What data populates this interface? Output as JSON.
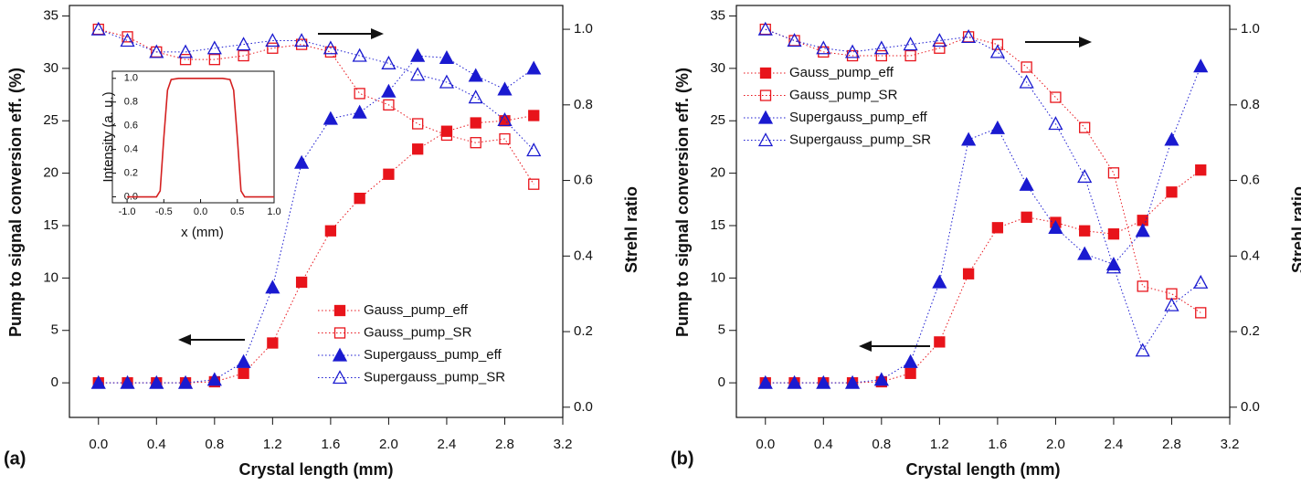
{
  "chart_data": [
    {
      "type": "scatter",
      "panel_label": "(a)",
      "xlabel": "Crystal length (mm)",
      "ylabel": "Pump to signal conversion eff. (%)",
      "y2label": "Strehl ratio",
      "x": [
        0,
        0.2,
        0.4,
        0.6,
        0.8,
        1.0,
        1.2,
        1.4,
        1.6,
        1.8,
        2.0,
        2.2,
        2.4,
        2.6,
        2.8,
        3.0
      ],
      "xlim": [
        -0.2,
        3.2
      ],
      "xticks": [
        {
          "value": 0,
          "label": "0.0"
        },
        0.4,
        0.8,
        1.2,
        1.6,
        {
          "value": 2,
          "label": "2.0"
        },
        2.4,
        2.8,
        3.2
      ],
      "ylim": [
        -3.3,
        36
      ],
      "yticks": [
        0,
        5,
        10,
        15,
        20,
        25,
        30,
        35
      ],
      "y2lim": [
        -0.027,
        1.063
      ],
      "y2ticks": [
        {
          "value": 0,
          "label": "0.0"
        },
        0.2,
        0.4,
        0.6,
        0.8,
        {
          "value": 1,
          "label": "1.0"
        }
      ],
      "legend": "lower right",
      "series": [
        {
          "name": "Gauss_pump_eff",
          "color": "#e8141b",
          "marker": "square",
          "filled": true,
          "values": [
            0,
            0,
            0,
            0,
            0.1,
            0.9,
            3.8,
            9.6,
            14.5,
            17.6,
            19.9,
            22.3,
            24.0,
            24.8,
            25.0,
            25.5
          ]
        },
        {
          "name": "Gauss_pump_SR",
          "color": "#e8141b",
          "marker": "square",
          "filled": false,
          "axis": "y2",
          "values": [
            1.0,
            0.98,
            0.94,
            0.92,
            0.92,
            0.93,
            0.95,
            0.96,
            0.94,
            0.83,
            0.8,
            0.75,
            0.72,
            0.7,
            0.71,
            0.59
          ]
        },
        {
          "name": "Supergauss_pump_eff",
          "color": "#1a1ad0",
          "marker": "triangle",
          "filled": true,
          "values": [
            0,
            0,
            0,
            0,
            0.3,
            2.0,
            9.1,
            21.0,
            25.2,
            25.8,
            27.8,
            31.2,
            31.0,
            29.3,
            28.0,
            30.0
          ]
        },
        {
          "name": "Supergauss_pump_SR",
          "color": "#1a1ad0",
          "marker": "triangle",
          "filled": false,
          "axis": "y2",
          "values": [
            1.0,
            0.97,
            0.94,
            0.94,
            0.95,
            0.96,
            0.97,
            0.97,
            0.95,
            0.93,
            0.91,
            0.88,
            0.86,
            0.82,
            0.76,
            0.68
          ]
        }
      ]
    },
    {
      "type": "line",
      "xlabel": "x (mm)",
      "ylabel": "Intensity (a. u.)",
      "x": [
        -1.0,
        -0.8,
        -0.6,
        -0.55,
        -0.5,
        -0.45,
        -0.4,
        -0.3,
        0,
        0.3,
        0.4,
        0.45,
        0.5,
        0.55,
        0.6,
        0.8,
        1.0
      ],
      "xlim": [
        -1.2,
        1.0
      ],
      "xticks": [
        {
          "value": -1,
          "label": "-1.0"
        },
        -0.5,
        {
          "value": 0,
          "label": "0.0"
        },
        0.5,
        {
          "value": 1,
          "label": "1.0"
        }
      ],
      "ylim": [
        -0.05,
        1.06
      ],
      "yticks": [
        {
          "value": 0,
          "label": "0.0"
        },
        0.2,
        0.4,
        0.6,
        0.8,
        {
          "value": 1,
          "label": "1.0"
        }
      ],
      "series": [
        {
          "color": "#d42020",
          "values": [
            0,
            0,
            0,
            0.05,
            0.5,
            0.9,
            0.99,
            1,
            1,
            1,
            0.99,
            0.9,
            0.5,
            0.05,
            0,
            0,
            0
          ]
        }
      ]
    },
    {
      "type": "scatter",
      "panel_label": "(b)",
      "xlabel": "Crystal length (mm)",
      "ylabel": "Pump to signal conversion eff. (%)",
      "y2label": "Strehl ratio",
      "x": [
        0,
        0.2,
        0.4,
        0.6,
        0.8,
        1.0,
        1.2,
        1.4,
        1.6,
        1.8,
        2.0,
        2.2,
        2.4,
        2.6,
        2.8,
        3.0
      ],
      "xlim": [
        -0.2,
        3.2
      ],
      "xticks": [
        {
          "value": 0,
          "label": "0.0"
        },
        0.4,
        0.8,
        1.2,
        1.6,
        {
          "value": 2,
          "label": "2.0"
        },
        2.4,
        2.8,
        3.2
      ],
      "ylim": [
        -3.3,
        36
      ],
      "yticks": [
        0,
        5,
        10,
        15,
        20,
        25,
        30,
        35
      ],
      "y2lim": [
        -0.027,
        1.063
      ],
      "y2ticks": [
        {
          "value": 0,
          "label": "0.0"
        },
        0.2,
        0.4,
        0.6,
        0.8,
        {
          "value": 1,
          "label": "1.0"
        }
      ],
      "legend": "upper left",
      "series": [
        {
          "name": "Gauss_pump_eff",
          "color": "#e8141b",
          "marker": "square",
          "filled": true,
          "values": [
            0,
            0,
            0,
            0,
            0.1,
            0.9,
            3.9,
            10.4,
            14.8,
            15.8,
            15.3,
            14.5,
            14.2,
            15.5,
            18.2,
            20.3
          ]
        },
        {
          "name": "Gauss_pump_SR",
          "color": "#e8141b",
          "marker": "square",
          "filled": false,
          "axis": "y2",
          "values": [
            1.0,
            0.97,
            0.94,
            0.93,
            0.93,
            0.93,
            0.95,
            0.98,
            0.96,
            0.9,
            0.82,
            0.74,
            0.62,
            0.32,
            0.3,
            0.25
          ]
        },
        {
          "name": "Supergauss_pump_eff",
          "color": "#1a1ad0",
          "marker": "triangle",
          "filled": true,
          "values": [
            0,
            0,
            0,
            0,
            0.3,
            2.0,
            9.6,
            23.2,
            24.3,
            18.9,
            14.8,
            12.3,
            11.3,
            14.5,
            23.2,
            30.2
          ]
        },
        {
          "name": "Supergauss_pump_SR",
          "color": "#1a1ad0",
          "marker": "triangle",
          "filled": false,
          "axis": "y2",
          "values": [
            1.0,
            0.97,
            0.95,
            0.94,
            0.95,
            0.96,
            0.97,
            0.98,
            0.94,
            0.86,
            0.75,
            0.61,
            0.37,
            0.15,
            0.27,
            0.33
          ]
        }
      ]
    }
  ]
}
